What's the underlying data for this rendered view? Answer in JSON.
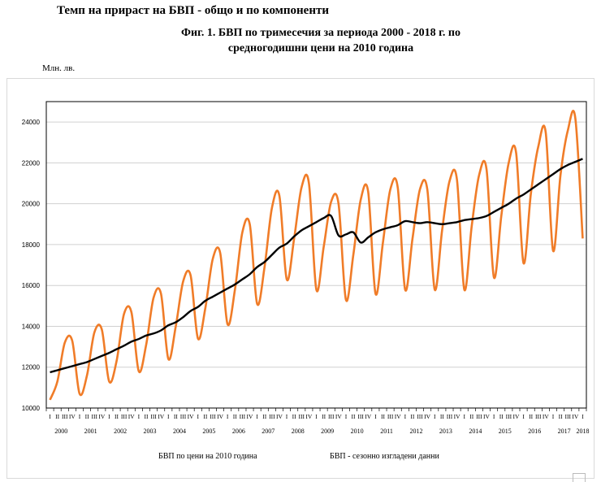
{
  "header": "Темп на прираст на БВП -  общо и по компоненти",
  "chart_data": {
    "type": "line",
    "title": "Фиг. 1. БВП по тримесечия за периода 2000 - 2018 г. по средногодишни цени на 2010 година",
    "ylabel": "Млн. лв.",
    "xlabel": "",
    "ylim": [
      10000,
      25000
    ],
    "yticks": [
      10000,
      12000,
      14000,
      16000,
      18000,
      20000,
      22000,
      24000
    ],
    "quarter_labels": [
      "I",
      "II",
      "III",
      "IV"
    ],
    "years": [
      "2000",
      "2001",
      "2002",
      "2003",
      "2004",
      "2005",
      "2006",
      "2007",
      "2008",
      "2009",
      "2010",
      "2011",
      "2012",
      "2013",
      "2014",
      "2015",
      "2016",
      "2017",
      "2018"
    ],
    "series": [
      {
        "name": "БВП  по цени на 2010 година",
        "color": "#f07c28",
        "values": [
          10400,
          11300,
          13200,
          13300,
          10700,
          11600,
          13700,
          13850,
          11300,
          12300,
          14600,
          14700,
          11800,
          13100,
          15400,
          15600,
          12400,
          14000,
          16200,
          16500,
          13400,
          14900,
          17300,
          17600,
          14100,
          15800,
          18600,
          19000,
          15100,
          16900,
          19800,
          20400,
          16300,
          18300,
          20800,
          21000,
          15800,
          17900,
          20100,
          20000,
          15300,
          17500,
          20200,
          20600,
          15600,
          18100,
          20700,
          20800,
          15800,
          18300,
          20700,
          20700,
          15800,
          18700,
          21100,
          21200,
          15800,
          18900,
          21400,
          21700,
          16400,
          19400,
          22000,
          22500,
          17100,
          20500,
          22800,
          23500,
          17700,
          21400,
          23600,
          24200,
          18300
        ]
      },
      {
        "name": "БВП  - сезонно изгладени данни",
        "color": "#000000",
        "values": [
          11750,
          11850,
          11950,
          12050,
          12150,
          12250,
          12400,
          12550,
          12700,
          12880,
          13050,
          13250,
          13380,
          13550,
          13650,
          13800,
          14050,
          14200,
          14450,
          14750,
          14950,
          15250,
          15450,
          15650,
          15850,
          16050,
          16300,
          16550,
          16900,
          17150,
          17500,
          17850,
          18050,
          18400,
          18700,
          18900,
          19100,
          19300,
          19400,
          18450,
          18500,
          18600,
          18100,
          18350,
          18600,
          18750,
          18850,
          18950,
          19150,
          19100,
          19050,
          19100,
          19050,
          19000,
          19050,
          19100,
          19200,
          19250,
          19300,
          19400,
          19600,
          19800,
          20000,
          20250,
          20450,
          20700,
          20950,
          21200,
          21450,
          21700,
          21900,
          22050,
          22200
        ]
      }
    ],
    "legend": "bottom"
  }
}
